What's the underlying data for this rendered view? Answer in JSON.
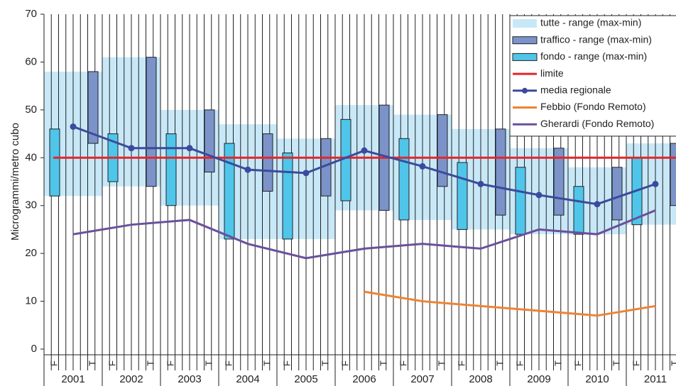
{
  "chart_data": {
    "type": "range-bar",
    "y_label": "Microgrammi/metro cubo",
    "ylim": [
      0,
      70
    ],
    "yticks": [
      0,
      10,
      20,
      30,
      40,
      50,
      60,
      70
    ],
    "categories": [
      "2001",
      "2002",
      "2003",
      "2004",
      "2005",
      "2006",
      "2007",
      "2008",
      "2009",
      "2010",
      "2011"
    ],
    "sub_labels": [
      "F",
      "T"
    ],
    "legend": "top-right",
    "ranges": [
      {
        "name": "tutte - range (max-min)",
        "color": "#c8e8f8",
        "style": "band",
        "lows": [
          32,
          34,
          30,
          23,
          23,
          29,
          27,
          25,
          24,
          24,
          26
        ],
        "highs": [
          58,
          61,
          50,
          47,
          44,
          51,
          49,
          46,
          42,
          38,
          43
        ]
      },
      {
        "name": "traffico - range (max-min)",
        "color": "#7b93c9",
        "style": "bar-T",
        "lows": [
          43,
          34,
          37,
          33,
          32,
          29,
          34,
          28,
          28,
          27,
          30
        ],
        "highs": [
          58,
          61,
          50,
          45,
          44,
          51,
          49,
          46,
          42,
          38,
          43
        ]
      },
      {
        "name": "fondo - range (max-min)",
        "color": "#4fc5ea",
        "style": "bar-F",
        "lows": [
          32,
          35,
          30,
          23,
          23,
          31,
          27,
          25,
          24,
          24,
          26
        ],
        "highs": [
          46,
          45,
          45,
          43,
          41,
          48,
          44,
          39,
          38,
          34,
          40
        ]
      }
    ],
    "limit": {
      "name": "limite",
      "color": "#e3262b",
      "value": 40
    },
    "series": [
      {
        "name": "media regionale",
        "color": "#3b4a9c",
        "marker": true,
        "values": [
          46.5,
          42,
          42,
          37.5,
          36.8,
          41.5,
          38.2,
          34.5,
          32.2,
          30.3,
          34.5
        ]
      },
      {
        "name": "Febbio (Fondo Remoto)",
        "color": "#f08232",
        "marker": false,
        "values": [
          null,
          null,
          null,
          null,
          null,
          12,
          10,
          9,
          8,
          7,
          9
        ]
      },
      {
        "name": "Gherardi (Fondo Remoto)",
        "color": "#6b4f9d",
        "marker": false,
        "values": [
          24,
          26,
          27,
          22,
          19,
          21,
          22,
          21,
          25,
          24,
          29
        ]
      }
    ]
  }
}
